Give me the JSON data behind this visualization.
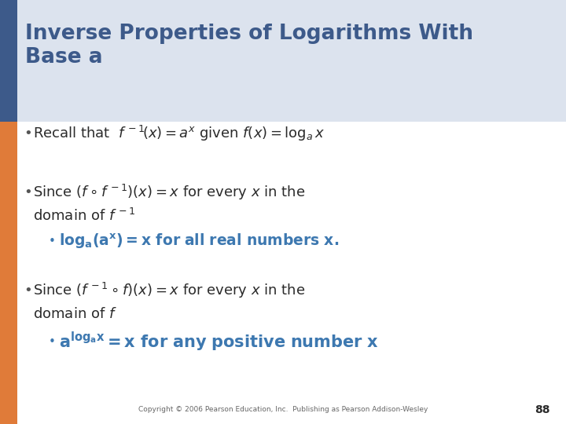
{
  "title_line1": "Inverse Properties of Logarithms With",
  "title_line2": "Base a",
  "title_color": "#3d5a8a",
  "title_fontsize": 19,
  "bg_color": "#ffffff",
  "blue_bar_color": "#3d5a8a",
  "orange_bar_color": "#e07b39",
  "bullet_color": "#555555",
  "text_color": "#2a2a2a",
  "highlight_color": "#3d78b0",
  "copyright": "Copyright © 2006 Pearson Education, Inc.  Publishing as Pearson Addison-Wesley",
  "page_number": "88",
  "body_fontsize": 13,
  "sub_highlight_fontsize": 13.5,
  "main_highlight_fontsize": 15
}
